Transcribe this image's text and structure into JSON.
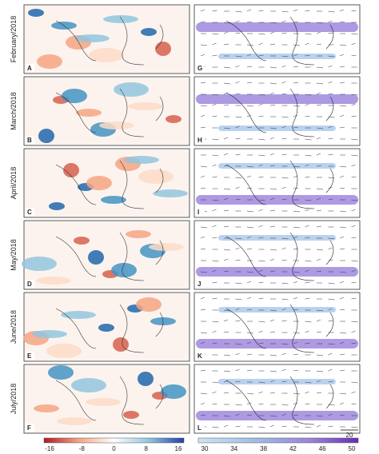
{
  "rows": [
    {
      "label": "February/2018",
      "left_panel": "A",
      "right_panel": "G"
    },
    {
      "label": "March/2018",
      "left_panel": "B",
      "right_panel": "H"
    },
    {
      "label": "April/2018",
      "left_panel": "C",
      "right_panel": "I"
    },
    {
      "label": "May/2018",
      "left_panel": "D",
      "right_panel": "J"
    },
    {
      "label": "June/2018",
      "left_panel": "E",
      "right_panel": "K"
    },
    {
      "label": "July/2018",
      "left_panel": "F",
      "right_panel": "L"
    }
  ],
  "left_colorbar": {
    "ticks": [
      "-16",
      "-8",
      "0",
      "8",
      "16"
    ]
  },
  "right_colorbar": {
    "ticks": [
      "30",
      "34",
      "38",
      "42",
      "46",
      "50"
    ]
  },
  "vector_scale": "20"
}
